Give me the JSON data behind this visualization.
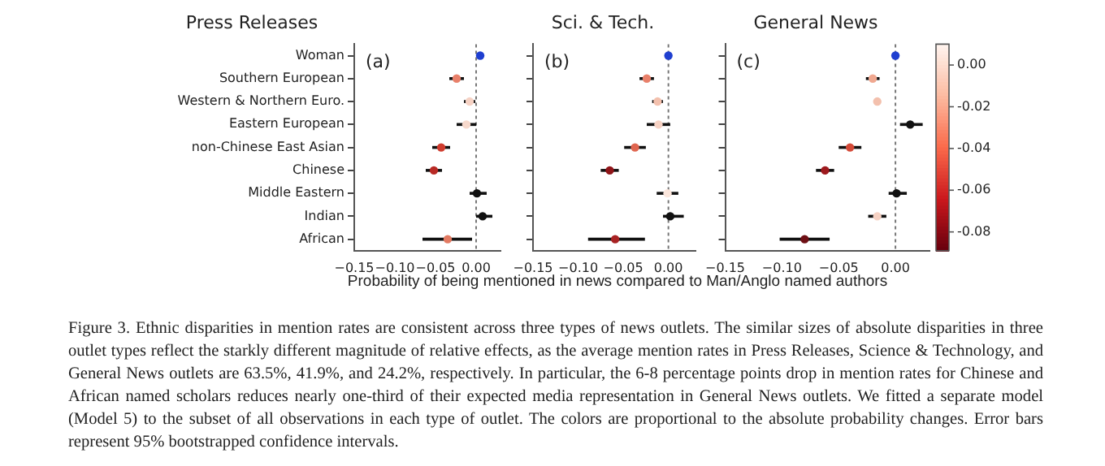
{
  "chart_data": [
    {
      "type": "scatter",
      "orientation": "horizontal",
      "title": "Press Releases",
      "categories": [
        "Woman",
        "Southern European",
        "Western & Northern Euro.",
        "Eastern European",
        "non-Chinese East Asian",
        "Chinese",
        "Middle Eastern",
        "Indian",
        "African"
      ],
      "values": [
        0.005,
        -0.024,
        -0.008,
        -0.012,
        -0.043,
        -0.052,
        0.001,
        0.008,
        -0.035
      ],
      "errors": [
        0.003,
        0.009,
        0.007,
        0.012,
        0.011,
        0.01,
        [
          -0.008,
          0.013
        ],
        [
          0.0,
          0.02
        ],
        [
          -0.066,
          -0.005
        ]
      ],
      "colors": [
        "#1f3fd0",
        "#e8806a",
        "#f6d2c4",
        "#f7d9cc",
        "#cf3c2e",
        "#b82a25",
        "#111111",
        "#111111",
        "#e27a62"
      ],
      "marker": "circle",
      "grid": false,
      "xlim": [
        -0.15,
        0.03
      ],
      "xticks": [
        {
          "value": -0.15,
          "label": "−0.15"
        },
        {
          "value": -0.1,
          "label": "−0.10"
        },
        {
          "value": -0.05,
          "label": "−0.05"
        },
        {
          "value": 0,
          "label": "0.00"
        }
      ],
      "ref_lines": [
        {
          "axis": "x",
          "value": 0,
          "line_style": "dotted",
          "color": "#777777"
        }
      ],
      "annotations": [
        "(a)",
        "Figure 3. Ethnic disparities in mention rates are consistent across three types of news outlets. The similar sizes of absolute disparities in three outlet types reflect the starkly different magnitude of relative effects, as the average mention rates in Press Releases, Science & Technology, and General News outlets are 63.5%, 41.9%, and 24.2%, respectively. In particular, the 6-8 percentage points drop in mention rates for Chinese and African named scholars reduces nearly one-third of their expected media representation in General News outlets. We fitted a separate model (Model 5) to the subset of all observations in each type of outlet. The colors are proportional to the absolute probability changes. Error bars represent 95% bootstrapped confidence intervals."
      ]
    },
    {
      "type": "scatter",
      "orientation": "horizontal",
      "title": "Sci. & Tech.",
      "xlabel": "Probability of being mentioned in news compared to Man/Anglo named authors",
      "categories": [
        null,
        null,
        null,
        null,
        null,
        null,
        null,
        null,
        null
      ],
      "values": [
        0.0,
        -0.024,
        -0.012,
        -0.011,
        -0.037,
        -0.065,
        -0.001,
        0.002,
        -0.059
      ],
      "errors": [
        null,
        0.008,
        0.006,
        0.013,
        0.012,
        0.01,
        0.012,
        [
          -0.006,
          0.017
        ],
        [
          -0.089,
          -0.026
        ]
      ],
      "colors": [
        "#1f3fd0",
        "#e8806a",
        "#f3c0ad",
        "#f6d2c4",
        "#e06650",
        "#8f1418",
        "#fbe6dc",
        "#111111",
        "#a82223"
      ],
      "marker": "circle",
      "grid": false,
      "tick_labels": "x",
      "xlim": [
        -0.15,
        0.03
      ],
      "xticks": [
        {
          "value": -0.15,
          "label": "−0.15"
        },
        {
          "value": -0.1,
          "label": "−0.10"
        },
        {
          "value": -0.05,
          "label": "−0.05"
        },
        {
          "value": 0,
          "label": "0.00"
        }
      ],
      "ref_lines": [
        {
          "axis": "x",
          "value": 0,
          "line_style": "dotted",
          "color": "#777777"
        }
      ],
      "annotations": [
        "(b)"
      ]
    },
    {
      "type": "scatter",
      "orientation": "horizontal",
      "title": "General News",
      "categories": [
        null,
        null,
        null,
        null,
        null,
        null,
        null,
        null,
        null
      ],
      "values": [
        0.0,
        -0.02,
        -0.016,
        0.013,
        -0.04,
        -0.062,
        0.001,
        -0.016,
        -0.08
      ],
      "errors": [
        null,
        0.006,
        null,
        [
          0.004,
          0.024
        ],
        0.01,
        0.008,
        [
          -0.006,
          0.01
        ],
        0.008,
        [
          -0.102,
          -0.058
        ]
      ],
      "colors": [
        "#1f3fd0",
        "#f0a890",
        "#f3c0ad",
        "#111111",
        "#d44a38",
        "#9e1a1e",
        "#111111",
        "#f6d2c4",
        "#6e0f14"
      ],
      "marker": "circle",
      "grid": false,
      "tick_labels": "x",
      "xlim": [
        -0.15,
        0.03
      ],
      "xticks": [
        {
          "value": -0.15,
          "label": "−0.15"
        },
        {
          "value": -0.1,
          "label": "−0.10"
        },
        {
          "value": -0.05,
          "label": "−0.05"
        },
        {
          "value": 0,
          "label": "0.00"
        }
      ],
      "ref_lines": [
        {
          "axis": "x",
          "value": 0,
          "line_style": "dotted",
          "color": "#777777"
        }
      ],
      "clim": [
        -0.089,
        0.01
      ],
      "cticks": [
        {
          "value": 0,
          "label": "0.00"
        },
        {
          "value": -0.02,
          "label": "-0.02"
        },
        {
          "value": -0.04,
          "label": "-0.04"
        },
        {
          "value": -0.06,
          "label": "-0.06"
        },
        {
          "value": -0.08,
          "label": "-0.08"
        }
      ],
      "annotations": [
        "(c)"
      ]
    }
  ]
}
